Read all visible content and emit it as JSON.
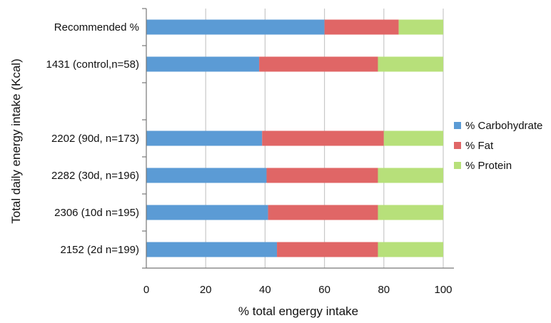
{
  "chart_data": {
    "type": "bar",
    "orientation": "horizontal",
    "stacked": true,
    "xlabel": "% total engergy intake",
    "ylabel": "Total daily energy intake (Kcal)",
    "xlim": [
      0,
      100
    ],
    "xticks": [
      "0",
      "20",
      "40",
      "60",
      "80",
      "100"
    ],
    "grid": true,
    "legend": "right",
    "categories": [
      "Recommended %",
      "1431 (control,n=58)",
      "",
      "2202 (90d, n=173)",
      "2282 (30d, n=196)",
      "2306 (10d n=195)",
      "2152 (2d n=199)"
    ],
    "series": [
      {
        "name": "% Carbohydrate",
        "color": "#5b9bd5",
        "values": [
          60,
          38,
          null,
          39,
          40.5,
          41,
          44
        ]
      },
      {
        "name": "% Fat",
        "color": "#e06666",
        "values": [
          25,
          40,
          null,
          41,
          37.5,
          37,
          34
        ]
      },
      {
        "name": "% Protein",
        "color": "#b7e07a",
        "values": [
          15,
          22,
          null,
          20,
          22,
          22,
          22
        ]
      }
    ]
  }
}
